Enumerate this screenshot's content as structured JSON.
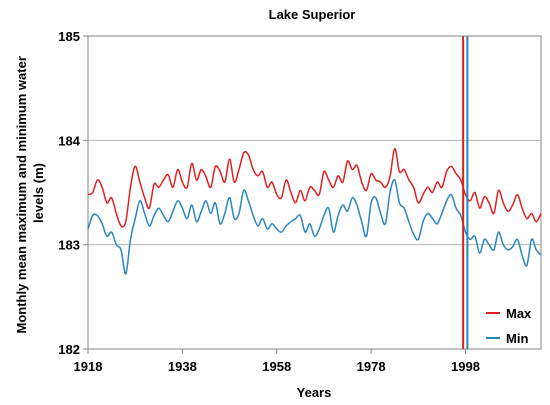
{
  "chart_data": {
    "type": "line",
    "title": "Lake Superior",
    "xlabel": "Years",
    "ylabel": "Monthly mean maximum and minimum water levels (m)",
    "ylabel_lines": [
      "Monthly mean maximum and minimum water",
      "levels (m)"
    ],
    "xlim": [
      1918,
      2014
    ],
    "ylim": [
      182,
      185
    ],
    "xticks": [
      1918,
      1938,
      1958,
      1978,
      1998
    ],
    "yticks": [
      182,
      183,
      184,
      185
    ],
    "grid": "horizontal",
    "legend_position": "bottom-right",
    "vertical_markers": [
      {
        "x": 1997.5,
        "color": "#e0201e"
      },
      {
        "x": 1998.4,
        "color": "#2a86c0"
      }
    ],
    "series": [
      {
        "name": "Max",
        "color": "#e0201e",
        "x": [
          1918,
          1919,
          1920,
          1921,
          1922,
          1923,
          1924,
          1925,
          1926,
          1927,
          1928,
          1929,
          1930,
          1931,
          1932,
          1933,
          1934,
          1935,
          1936,
          1937,
          1938,
          1939,
          1940,
          1941,
          1942,
          1943,
          1944,
          1945,
          1946,
          1947,
          1948,
          1949,
          1950,
          1951,
          1952,
          1953,
          1954,
          1955,
          1956,
          1957,
          1958,
          1959,
          1960,
          1961,
          1962,
          1963,
          1964,
          1965,
          1966,
          1967,
          1968,
          1969,
          1970,
          1971,
          1972,
          1973,
          1974,
          1975,
          1976,
          1977,
          1978,
          1979,
          1980,
          1981,
          1982,
          1983,
          1984,
          1985,
          1986,
          1987,
          1988,
          1989,
          1990,
          1991,
          1992,
          1993,
          1994,
          1995,
          1996,
          1997,
          1998,
          1999,
          2000,
          2001,
          2002,
          2003,
          2004,
          2005,
          2006,
          2007,
          2008,
          2009,
          2010,
          2011,
          2012,
          2013,
          2014
        ],
        "values": [
          183.48,
          183.5,
          183.62,
          183.55,
          183.4,
          183.45,
          183.3,
          183.18,
          183.22,
          183.55,
          183.75,
          183.6,
          183.45,
          183.35,
          183.58,
          183.55,
          183.62,
          183.67,
          183.55,
          183.72,
          183.6,
          183.55,
          183.78,
          183.62,
          183.72,
          183.65,
          183.55,
          183.75,
          183.7,
          183.6,
          183.82,
          183.6,
          183.72,
          183.88,
          183.86,
          183.72,
          183.66,
          183.7,
          183.55,
          183.6,
          183.48,
          183.45,
          183.62,
          183.5,
          183.4,
          183.52,
          183.42,
          183.55,
          183.52,
          183.48,
          183.7,
          183.62,
          183.55,
          183.66,
          183.6,
          183.8,
          183.72,
          183.76,
          183.6,
          183.52,
          183.68,
          183.62,
          183.6,
          183.55,
          183.65,
          183.92,
          183.7,
          183.72,
          183.62,
          183.55,
          183.4,
          183.48,
          183.55,
          183.5,
          183.6,
          183.55,
          183.7,
          183.75,
          183.68,
          183.62,
          183.48,
          183.42,
          183.5,
          183.35,
          183.46,
          183.4,
          183.3,
          183.52,
          183.4,
          183.32,
          183.38,
          183.48,
          183.35,
          183.25,
          183.3,
          183.22,
          183.3
        ]
      },
      {
        "name": "Min",
        "color": "#2a86c0",
        "x": [
          1918,
          1919,
          1920,
          1921,
          1922,
          1923,
          1924,
          1925,
          1926,
          1927,
          1928,
          1929,
          1930,
          1931,
          1932,
          1933,
          1934,
          1935,
          1936,
          1937,
          1938,
          1939,
          1940,
          1941,
          1942,
          1943,
          1944,
          1945,
          1946,
          1947,
          1948,
          1949,
          1950,
          1951,
          1952,
          1953,
          1954,
          1955,
          1956,
          1957,
          1958,
          1959,
          1960,
          1961,
          1962,
          1963,
          1964,
          1965,
          1966,
          1967,
          1968,
          1969,
          1970,
          1971,
          1972,
          1973,
          1974,
          1975,
          1976,
          1977,
          1978,
          1979,
          1980,
          1981,
          1982,
          1983,
          1984,
          1985,
          1986,
          1987,
          1988,
          1989,
          1990,
          1991,
          1992,
          1993,
          1994,
          1995,
          1996,
          1997,
          1998,
          1999,
          2000,
          2001,
          2002,
          2003,
          2004,
          2005,
          2006,
          2007,
          2008,
          2009,
          2010,
          2011,
          2012,
          2013,
          2014
        ],
        "values": [
          183.15,
          183.28,
          183.28,
          183.2,
          183.08,
          183.12,
          183.0,
          182.95,
          182.72,
          183.05,
          183.25,
          183.42,
          183.3,
          183.18,
          183.28,
          183.35,
          183.28,
          183.22,
          183.32,
          183.42,
          183.35,
          183.25,
          183.38,
          183.22,
          183.32,
          183.42,
          183.3,
          183.4,
          183.2,
          183.3,
          183.45,
          183.25,
          183.3,
          183.52,
          183.42,
          183.28,
          183.18,
          183.25,
          183.15,
          183.2,
          183.15,
          183.12,
          183.18,
          183.22,
          183.25,
          183.28,
          183.12,
          183.2,
          183.08,
          183.15,
          183.28,
          183.35,
          183.12,
          183.28,
          183.38,
          183.32,
          183.45,
          183.38,
          183.22,
          183.08,
          183.4,
          183.45,
          183.3,
          183.2,
          183.5,
          183.62,
          183.4,
          183.35,
          183.22,
          183.1,
          183.05,
          183.22,
          183.3,
          183.25,
          183.2,
          183.3,
          183.42,
          183.48,
          183.35,
          183.28,
          183.12,
          183.05,
          183.08,
          182.92,
          183.05,
          183.0,
          182.95,
          183.12,
          183.0,
          182.95,
          182.98,
          183.05,
          182.9,
          182.8,
          183.05,
          182.95,
          182.9
        ]
      }
    ]
  }
}
